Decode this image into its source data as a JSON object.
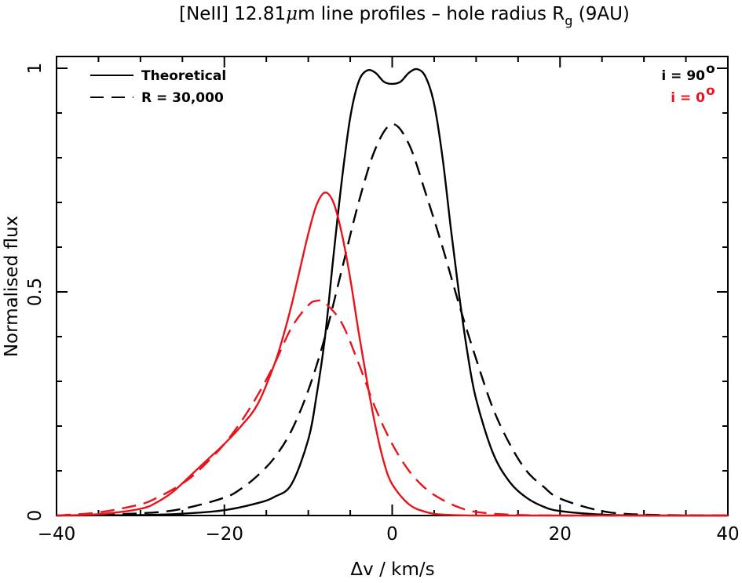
{
  "chart_data": {
    "type": "line",
    "title": {
      "main": "[NeII] 12.81",
      "mu": "μ",
      "mid": "m line profiles – hole radius R",
      "sub": "g",
      "end": " (9AU)"
    },
    "xlabel": "Δv / km/s",
    "ylabel": "Normalised flux",
    "xlim": [
      -40,
      40
    ],
    "ylim": [
      0,
      1.0
    ],
    "x_ticks": [
      -40,
      -20,
      0,
      20,
      40
    ],
    "x_tick_labels": [
      "−40",
      "−20",
      "0",
      "20",
      "40"
    ],
    "y_ticks": [
      0,
      0.5,
      1
    ],
    "y_tick_labels": [
      "0",
      "0.5",
      "1"
    ],
    "legend": {
      "styles": [
        {
          "label": "Theoretical",
          "dash": "solid"
        },
        {
          "label": "R = 30,000",
          "dash": "dashed"
        }
      ],
      "inclinations": [
        {
          "label": "i = 90",
          "superscript": "o",
          "color": "#000000"
        },
        {
          "label": "i = 0",
          "superscript": "o",
          "color": "#e8141c"
        }
      ]
    },
    "series": [
      {
        "inclination": "i = 90°",
        "style": "Theoretical",
        "color": "#000000",
        "dash": "solid",
        "x": [
          -40,
          -30,
          -25,
          -20,
          -16,
          -14,
          -12,
          -10,
          -9,
          -8,
          -7,
          -6,
          -5,
          -4,
          -3,
          -2,
          -1,
          0,
          1,
          2,
          3,
          4,
          5,
          6,
          7,
          8,
          9,
          10,
          12,
          14,
          16,
          18,
          20,
          25,
          30,
          40
        ],
        "y": [
          0.0,
          0.001,
          0.004,
          0.012,
          0.028,
          0.042,
          0.07,
          0.17,
          0.27,
          0.4,
          0.58,
          0.75,
          0.89,
          0.97,
          0.995,
          0.99,
          0.97,
          0.965,
          0.97,
          0.99,
          0.998,
          0.98,
          0.92,
          0.8,
          0.64,
          0.49,
          0.36,
          0.26,
          0.14,
          0.075,
          0.04,
          0.02,
          0.01,
          0.002,
          0.0,
          0.0
        ]
      },
      {
        "inclination": "i = 90°",
        "style": "R = 30,000",
        "color": "#000000",
        "dash": "dashed",
        "x": [
          -40,
          -30,
          -25,
          -20,
          -18,
          -16,
          -14,
          -12,
          -10,
          -8,
          -6,
          -4,
          -2,
          0,
          2,
          4,
          6,
          8,
          10,
          12,
          14,
          16,
          18,
          20,
          25,
          30,
          40
        ],
        "y": [
          0.0,
          0.005,
          0.015,
          0.04,
          0.06,
          0.09,
          0.13,
          0.19,
          0.28,
          0.4,
          0.55,
          0.7,
          0.82,
          0.875,
          0.83,
          0.72,
          0.6,
          0.47,
          0.35,
          0.24,
          0.16,
          0.1,
          0.065,
          0.038,
          0.01,
          0.002,
          0.0
        ]
      },
      {
        "inclination": "i = 0°",
        "style": "Theoretical",
        "color": "#e8141c",
        "dash": "solid",
        "x": [
          -40,
          -35,
          -30,
          -28,
          -26,
          -24,
          -22,
          -20,
          -18,
          -16,
          -14,
          -13,
          -12,
          -11,
          -10,
          -9,
          -8,
          -7,
          -6,
          -5,
          -4,
          -3,
          -2,
          -1,
          0,
          2,
          4,
          6,
          10,
          20,
          40
        ],
        "y": [
          0.0,
          0.003,
          0.015,
          0.03,
          0.055,
          0.09,
          0.125,
          0.16,
          0.2,
          0.25,
          0.34,
          0.4,
          0.47,
          0.55,
          0.63,
          0.695,
          0.722,
          0.7,
          0.63,
          0.53,
          0.41,
          0.3,
          0.2,
          0.12,
          0.07,
          0.025,
          0.008,
          0.002,
          0.0,
          0.0,
          0.0
        ]
      },
      {
        "inclination": "i = 0°",
        "style": "R = 30,000",
        "color": "#e8141c",
        "dash": "dashed",
        "x": [
          -40,
          -35,
          -30,
          -28,
          -26,
          -24,
          -22,
          -20,
          -18,
          -16,
          -14,
          -12,
          -10,
          -9,
          -8,
          -6,
          -4,
          -2,
          0,
          2,
          4,
          6,
          8,
          10,
          14,
          20,
          40
        ],
        "y": [
          0.0,
          0.007,
          0.025,
          0.04,
          0.06,
          0.085,
          0.12,
          0.16,
          0.21,
          0.27,
          0.34,
          0.42,
          0.47,
          0.48,
          0.475,
          0.43,
          0.34,
          0.24,
          0.16,
          0.1,
          0.06,
          0.035,
          0.018,
          0.008,
          0.002,
          0.0,
          0.0
        ]
      }
    ]
  }
}
